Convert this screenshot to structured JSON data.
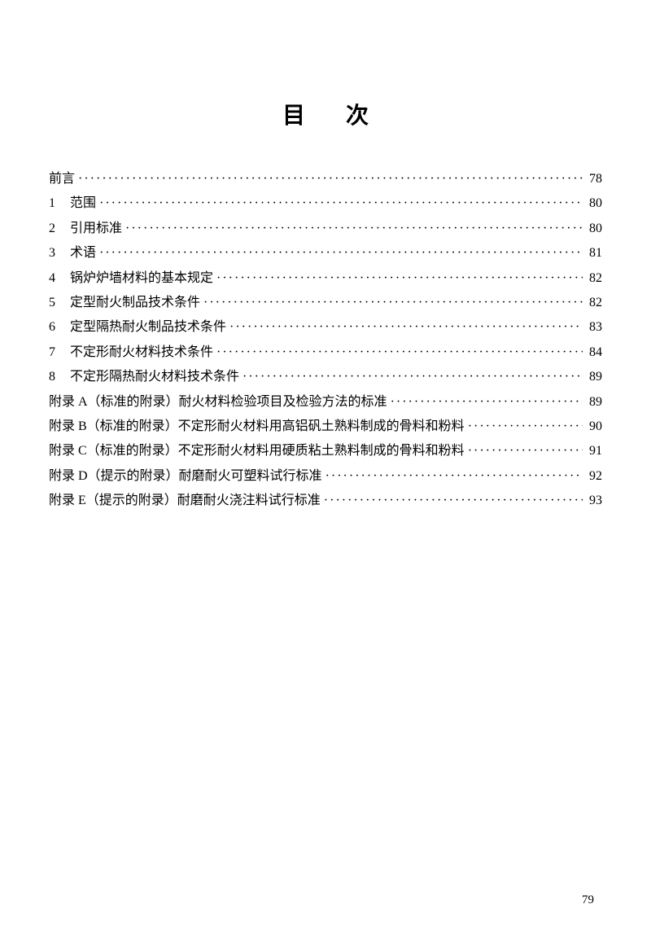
{
  "title": "目次",
  "entries": [
    {
      "prefix": "",
      "label": "前言",
      "page": "78"
    },
    {
      "prefix": "1",
      "label": "范围",
      "page": "80"
    },
    {
      "prefix": "2",
      "label": "引用标准",
      "page": "80"
    },
    {
      "prefix": "3",
      "label": "术语",
      "page": "81"
    },
    {
      "prefix": "4",
      "label": "锅炉炉墙材料的基本规定",
      "page": "82"
    },
    {
      "prefix": "5",
      "label": "定型耐火制品技术条件",
      "page": "82"
    },
    {
      "prefix": "6",
      "label": "定型隔热耐火制品技术条件",
      "page": "83"
    },
    {
      "prefix": "7",
      "label": "不定形耐火材料技术条件",
      "page": "84"
    },
    {
      "prefix": "8",
      "label": "不定形隔热耐火材料技术条件",
      "page": "89"
    },
    {
      "prefix": "",
      "label": "附录 A（标准的附录）耐火材料检验项目及检验方法的标准",
      "page": "89"
    },
    {
      "prefix": "",
      "label": "附录 B（标准的附录）不定形耐火材料用高铝矾土熟料制成的骨料和粉料",
      "page": "90"
    },
    {
      "prefix": "",
      "label": "附录 C（标准的附录）不定形耐火材料用硬质粘土熟料制成的骨料和粉料",
      "page": "91"
    },
    {
      "prefix": "",
      "label": "附录 D（提示的附录）耐磨耐火可塑料试行标准",
      "page": "92"
    },
    {
      "prefix": "",
      "label": "附录 E（提示的附录）耐磨耐火浇注料试行标准",
      "page": "93"
    }
  ],
  "pageNumber": "79",
  "colors": {
    "text": "#000000",
    "background": "#ffffff"
  },
  "fonts": {
    "title_size": 28,
    "body_size": 16,
    "page_num_size": 15
  }
}
